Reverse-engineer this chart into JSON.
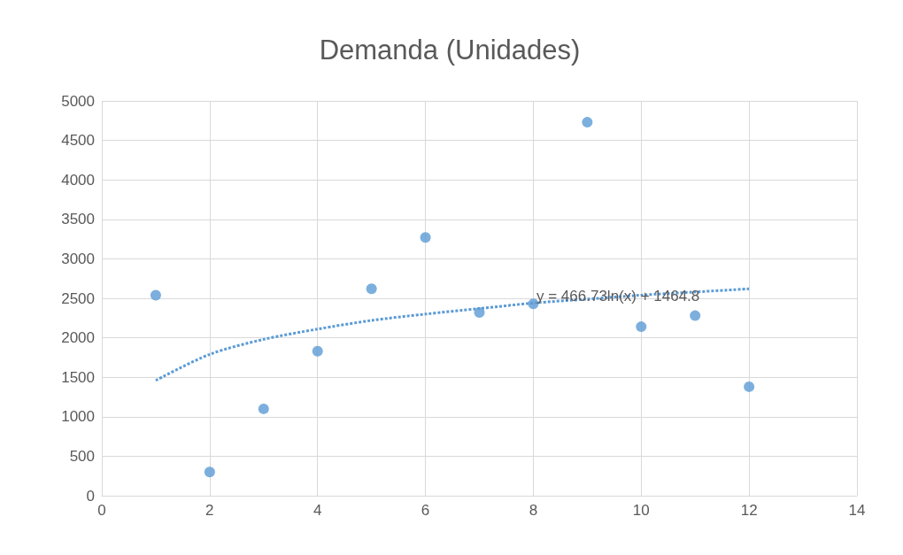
{
  "chart_data": {
    "type": "scatter",
    "title": "Demanda (Unidades)",
    "x": [
      1,
      2,
      3,
      4,
      5,
      6,
      7,
      8,
      9,
      10,
      11,
      12
    ],
    "series": [
      {
        "color": "#5b9bd5",
        "marker": "circle",
        "values": [
          2540,
          300,
          1100,
          1830,
          2620,
          3270,
          2320,
          2430,
          4730,
          2140,
          2280,
          1380
        ]
      },
      {
        "type": "line",
        "color": "#5b9bd5",
        "line_style": "dotted",
        "marker": "none",
        "x": [
          1,
          2,
          3,
          4,
          5,
          6,
          7,
          8,
          9,
          10,
          11,
          12
        ],
        "values": [
          1460,
          1790,
          1980,
          2110,
          2220,
          2300,
          2370,
          2440,
          2490,
          2540,
          2580,
          2620
        ]
      }
    ],
    "xlim": [
      0,
      14
    ],
    "xticks": [
      0,
      2,
      4,
      6,
      8,
      10,
      12,
      14
    ],
    "ylim": [
      0,
      5000
    ],
    "yticks": [
      0,
      500,
      1000,
      1500,
      2000,
      2500,
      3000,
      3500,
      4000,
      4500,
      5000
    ],
    "grid": true,
    "annotations": [
      "y = 466.73ln(x) + 1464.8"
    ]
  }
}
